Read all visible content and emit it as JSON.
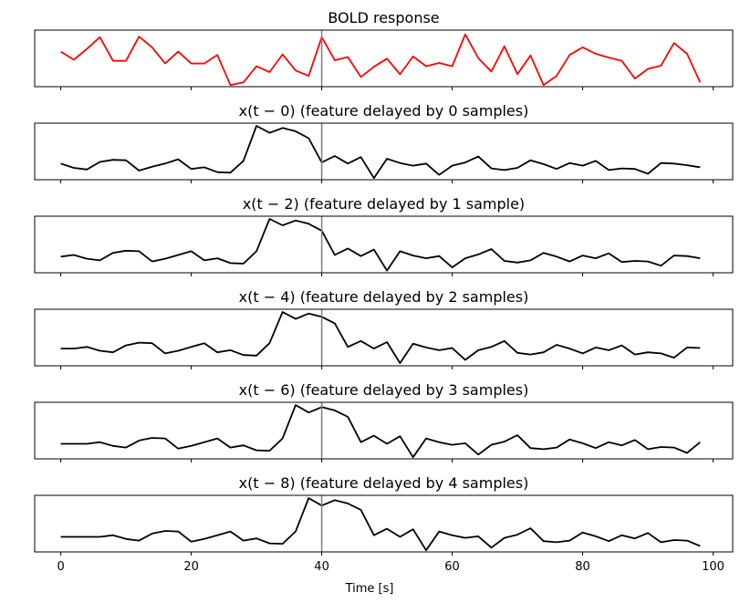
{
  "chart_data": {
    "type": "line",
    "xlabel": "Time [s]",
    "xlim": [
      -4,
      103
    ],
    "xticks": [
      0,
      20,
      40,
      60,
      80,
      100
    ],
    "marker_x": 40,
    "marker_color": "#808080",
    "panels": [
      {
        "title": "BOLD response",
        "color": "#ff0000",
        "ylim": [
          0.0,
          1.05
        ],
        "x": [
          0,
          2,
          4,
          6,
          8,
          10,
          12,
          14,
          16,
          18,
          20,
          22,
          24,
          26,
          28,
          30,
          32,
          34,
          36,
          38,
          40,
          42,
          44,
          46,
          48,
          50,
          52,
          54,
          56,
          58,
          60,
          62,
          64,
          66,
          68,
          70,
          72,
          74,
          76,
          78,
          80,
          82,
          84,
          86,
          88,
          90,
          92,
          94,
          96,
          98
        ],
        "values": [
          0.65,
          0.5,
          0.7,
          0.92,
          0.48,
          0.48,
          0.93,
          0.73,
          0.43,
          0.65,
          0.43,
          0.43,
          0.59,
          0.03,
          0.08,
          0.38,
          0.27,
          0.6,
          0.3,
          0.2,
          0.92,
          0.49,
          0.55,
          0.18,
          0.37,
          0.52,
          0.23,
          0.56,
          0.38,
          0.44,
          0.38,
          0.97,
          0.53,
          0.28,
          0.75,
          0.23,
          0.58,
          0.03,
          0.2,
          0.59,
          0.73,
          0.61,
          0.54,
          0.48,
          0.15,
          0.33,
          0.39,
          0.81,
          0.61,
          0.08
        ]
      },
      {
        "title": "x(t − 0) (feature delayed by 0 samples)",
        "color": "#000000",
        "ylim": [
          0.0,
          1.05
        ],
        "x": [
          0,
          2,
          4,
          6,
          8,
          10,
          12,
          14,
          16,
          18,
          20,
          22,
          24,
          26,
          28,
          30,
          32,
          34,
          36,
          38,
          40,
          42,
          44,
          46,
          48,
          50,
          52,
          54,
          56,
          58,
          60,
          62,
          64,
          66,
          68,
          70,
          72,
          74,
          76,
          78,
          80,
          82,
          84,
          86,
          88,
          90,
          92,
          94,
          96,
          98
        ],
        "values": [
          0.3,
          0.22,
          0.19,
          0.33,
          0.37,
          0.36,
          0.17,
          0.24,
          0.3,
          0.38,
          0.2,
          0.23,
          0.14,
          0.13,
          0.35,
          1.0,
          0.87,
          0.96,
          0.9,
          0.77,
          0.32,
          0.44,
          0.3,
          0.42,
          0.03,
          0.39,
          0.31,
          0.26,
          0.3,
          0.09,
          0.26,
          0.32,
          0.43,
          0.21,
          0.18,
          0.22,
          0.36,
          0.29,
          0.2,
          0.31,
          0.26,
          0.35,
          0.18,
          0.21,
          0.2,
          0.11,
          0.31,
          0.3,
          0.27,
          0.23
        ]
      },
      {
        "title": "x(t − 2) (feature delayed by 1 sample)",
        "color": "#000000",
        "ylim": [
          0.0,
          1.05
        ],
        "x": [
          0,
          2,
          4,
          6,
          8,
          10,
          12,
          14,
          16,
          18,
          20,
          22,
          24,
          26,
          28,
          30,
          32,
          34,
          36,
          38,
          40,
          42,
          44,
          46,
          48,
          50,
          52,
          54,
          56,
          58,
          60,
          62,
          64,
          66,
          68,
          70,
          72,
          74,
          76,
          78,
          80,
          82,
          84,
          86,
          88,
          90,
          92,
          94,
          96,
          98
        ],
        "values": [
          0.3,
          0.33,
          0.26,
          0.23,
          0.37,
          0.41,
          0.4,
          0.21,
          0.26,
          0.33,
          0.4,
          0.23,
          0.27,
          0.18,
          0.17,
          0.4,
          1.0,
          0.88,
          0.97,
          0.91,
          0.78,
          0.33,
          0.45,
          0.31,
          0.43,
          0.04,
          0.4,
          0.32,
          0.27,
          0.31,
          0.1,
          0.27,
          0.34,
          0.44,
          0.22,
          0.19,
          0.23,
          0.37,
          0.3,
          0.21,
          0.32,
          0.27,
          0.36,
          0.2,
          0.22,
          0.21,
          0.13,
          0.32,
          0.31,
          0.27
        ]
      },
      {
        "title": "x(t − 4) (feature delayed by 2 samples)",
        "color": "#000000",
        "ylim": [
          0.0,
          1.05
        ],
        "x": [
          0,
          2,
          4,
          6,
          8,
          10,
          12,
          14,
          16,
          18,
          20,
          22,
          24,
          26,
          28,
          30,
          32,
          34,
          36,
          38,
          40,
          42,
          44,
          46,
          48,
          50,
          52,
          54,
          56,
          58,
          60,
          62,
          64,
          66,
          68,
          70,
          72,
          74,
          76,
          78,
          80,
          82,
          84,
          86,
          88,
          90,
          92,
          94,
          96,
          98
        ],
        "values": [
          0.32,
          0.32,
          0.35,
          0.28,
          0.25,
          0.38,
          0.43,
          0.42,
          0.23,
          0.28,
          0.35,
          0.42,
          0.25,
          0.29,
          0.2,
          0.19,
          0.42,
          1.0,
          0.87,
          0.97,
          0.91,
          0.79,
          0.35,
          0.46,
          0.32,
          0.44,
          0.05,
          0.41,
          0.34,
          0.29,
          0.33,
          0.11,
          0.29,
          0.35,
          0.46,
          0.24,
          0.21,
          0.25,
          0.39,
          0.32,
          0.23,
          0.34,
          0.29,
          0.38,
          0.21,
          0.25,
          0.23,
          0.15,
          0.34,
          0.33
        ]
      },
      {
        "title": "x(t − 6) (feature delayed by 3 samples)",
        "color": "#000000",
        "ylim": [
          0.0,
          1.05
        ],
        "x": [
          0,
          2,
          4,
          6,
          8,
          10,
          12,
          14,
          16,
          18,
          20,
          22,
          24,
          26,
          28,
          30,
          32,
          34,
          36,
          38,
          40,
          42,
          44,
          46,
          48,
          50,
          52,
          54,
          56,
          58,
          60,
          62,
          64,
          66,
          68,
          70,
          72,
          74,
          76,
          78,
          80,
          82,
          84,
          86,
          88,
          90,
          92,
          94,
          96,
          98
        ],
        "values": [
          0.28,
          0.28,
          0.28,
          0.31,
          0.24,
          0.21,
          0.34,
          0.39,
          0.38,
          0.19,
          0.24,
          0.31,
          0.38,
          0.21,
          0.25,
          0.16,
          0.15,
          0.38,
          1.0,
          0.86,
          0.96,
          0.9,
          0.78,
          0.31,
          0.43,
          0.28,
          0.42,
          0.03,
          0.38,
          0.31,
          0.26,
          0.29,
          0.08,
          0.26,
          0.32,
          0.44,
          0.2,
          0.18,
          0.21,
          0.36,
          0.29,
          0.2,
          0.31,
          0.25,
          0.35,
          0.18,
          0.22,
          0.21,
          0.11,
          0.31
        ]
      },
      {
        "title": "x(t − 8) (feature delayed by 4 samples)",
        "color": "#000000",
        "ylim": [
          0.0,
          1.05
        ],
        "x": [
          0,
          2,
          4,
          6,
          8,
          10,
          12,
          14,
          16,
          18,
          20,
          22,
          24,
          26,
          28,
          30,
          32,
          34,
          36,
          38,
          40,
          42,
          44,
          46,
          48,
          50,
          52,
          54,
          56,
          58,
          60,
          62,
          64,
          66,
          68,
          70,
          72,
          74,
          76,
          78,
          80,
          82,
          84,
          86,
          88,
          90,
          92,
          94,
          96,
          98
        ],
        "values": [
          0.28,
          0.28,
          0.28,
          0.28,
          0.31,
          0.24,
          0.21,
          0.34,
          0.39,
          0.38,
          0.19,
          0.24,
          0.31,
          0.38,
          0.21,
          0.25,
          0.16,
          0.15,
          0.38,
          1.0,
          0.86,
          0.96,
          0.9,
          0.78,
          0.31,
          0.43,
          0.28,
          0.42,
          0.03,
          0.38,
          0.31,
          0.26,
          0.29,
          0.08,
          0.26,
          0.32,
          0.44,
          0.2,
          0.18,
          0.21,
          0.36,
          0.29,
          0.2,
          0.31,
          0.25,
          0.35,
          0.18,
          0.22,
          0.21,
          0.11
        ]
      }
    ]
  }
}
